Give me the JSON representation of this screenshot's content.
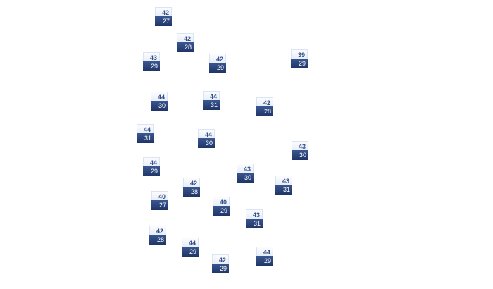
{
  "colors": {
    "high_bg": "#eef2fa",
    "high_text": "#34508a",
    "low_bg": "#26407a",
    "low_text": "#ffffff"
  },
  "markers": [
    {
      "high": "42",
      "low": "27"
    },
    {
      "high": "42",
      "low": "28"
    },
    {
      "high": "43",
      "low": "29"
    },
    {
      "high": "42",
      "low": "29"
    },
    {
      "high": "39",
      "low": "29"
    },
    {
      "high": "44",
      "low": "30"
    },
    {
      "high": "44",
      "low": "31"
    },
    {
      "high": "42",
      "low": "28"
    },
    {
      "high": "44",
      "low": "31"
    },
    {
      "high": "44",
      "low": "30"
    },
    {
      "high": "43",
      "low": "30"
    },
    {
      "high": "44",
      "low": "29"
    },
    {
      "high": "43",
      "low": "30"
    },
    {
      "high": "43",
      "low": "31"
    },
    {
      "high": "42",
      "low": "28"
    },
    {
      "high": "40",
      "low": "27"
    },
    {
      "high": "40",
      "low": "29"
    },
    {
      "high": "43",
      "low": "31"
    },
    {
      "high": "42",
      "low": "28"
    },
    {
      "high": "44",
      "low": "29"
    },
    {
      "high": "42",
      "low": "29"
    },
    {
      "high": "44",
      "low": "29"
    }
  ]
}
